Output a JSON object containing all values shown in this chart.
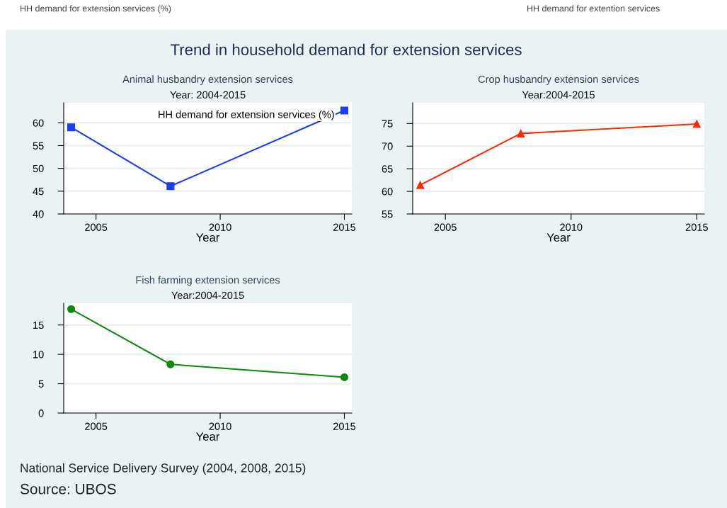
{
  "chart_data": [
    {
      "type": "other",
      "title": "Trend in household demand for extension services",
      "annotations": [
        "HH demand for extension services (%)",
        "HH demand for extention services",
        "National Service Delivery Survey (2004, 2008, 2015)",
        "Source: UBOS"
      ]
    },
    {
      "type": "line",
      "title": "Animal husbandry extension services",
      "subtitle": "Year: 2004-2015",
      "xlabel": "Year",
      "x": [
        2004,
        2008,
        2015
      ],
      "series": [
        {
          "color": "#1a3cff",
          "values": [
            59.0,
            46.1,
            62.7
          ]
        }
      ],
      "marker": "square",
      "xlim": [
        2003.7,
        2015.3
      ],
      "xticks": [
        2005,
        2010,
        2015
      ],
      "ylim": [
        40,
        64.4
      ],
      "yticks": [
        40,
        45,
        50,
        55,
        60
      ],
      "grid": "y",
      "annotations": [
        "HH demand for extension services (%)"
      ]
    },
    {
      "type": "line",
      "title": "Crop husbandry extension services",
      "subtitle": "Year:2004-2015",
      "xlabel": "Year",
      "x": [
        2004,
        2008,
        2015
      ],
      "series": [
        {
          "color": "#ff2a00",
          "values": [
            61.4,
            72.8,
            74.9
          ]
        }
      ],
      "marker": "triangle",
      "xlim": [
        2003.7,
        2015.3
      ],
      "xticks": [
        2005,
        2010,
        2015
      ],
      "ylim": [
        55,
        79.6
      ],
      "yticks": [
        55,
        60,
        65,
        70,
        75
      ],
      "grid": "y"
    },
    {
      "type": "line",
      "title": "Fish farming extension services",
      "subtitle": "Year:2004-2015",
      "xlabel": "Year",
      "x": [
        2004,
        2008,
        2015
      ],
      "series": [
        {
          "color": "#0a8c0a",
          "values": [
            17.7,
            8.3,
            6.1
          ]
        }
      ],
      "marker": "circle",
      "xlim": [
        2003.7,
        2015.3
      ],
      "xticks": [
        2005,
        2010,
        2015
      ],
      "ylim": [
        0,
        18.7
      ],
      "yticks": [
        0,
        5,
        10,
        15
      ],
      "grid": "y"
    }
  ]
}
